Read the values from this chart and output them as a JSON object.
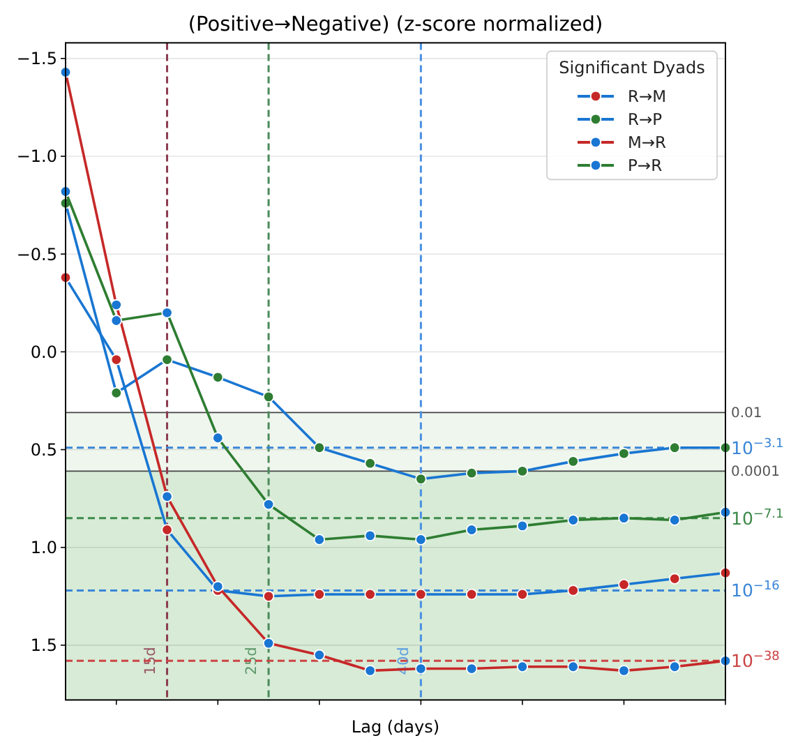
{
  "chart_data": {
    "type": "line",
    "title": "(Positive→Negative) (z-score normalized)",
    "xlabel": "Lag (days)",
    "legend_title": "Significant Dyads",
    "x": [
      5,
      10,
      15,
      20,
      25,
      30,
      35,
      40,
      45,
      50,
      55,
      60,
      65,
      70
    ],
    "xlim": [
      5,
      70
    ],
    "xticks": [
      {
        "value": 10,
        "label": null
      },
      {
        "value": 20,
        "label": null
      },
      {
        "value": 30,
        "label": null
      },
      {
        "value": 40,
        "label": null
      },
      {
        "value": 50,
        "label": null
      },
      {
        "value": 60,
        "label": null
      },
      {
        "value": 70,
        "label": null
      }
    ],
    "ylim": [
      1.78,
      -1.58
    ],
    "yticks": [
      {
        "value": -1.5,
        "label": "−1.5"
      },
      {
        "value": -1,
        "label": "−1.0"
      },
      {
        "value": -0.5,
        "label": "−0.5"
      },
      {
        "value": 0,
        "label": "0.0"
      },
      0.5,
      {
        "value": 1,
        "label": "1.0"
      },
      1.5
    ],
    "tick_labels": "y",
    "grid": "y",
    "legend": "top right",
    "marker": "circle",
    "line_style": "solid",
    "series": [
      {
        "name": "R→M",
        "color": "#1976d2",
        "colors": [
          "#c62828",
          "#c62828",
          "#c62828",
          "#c62828",
          "#c62828",
          "#c62828",
          "#c62828",
          "#c62828",
          "#c62828",
          "#c62828",
          "#c62828",
          "#c62828",
          "#c62828",
          "#c62828"
        ],
        "values": [
          -0.38,
          0.04,
          0.91,
          1.22,
          1.25,
          1.24,
          1.24,
          1.24,
          1.24,
          1.24,
          1.22,
          1.19,
          1.16,
          1.13
        ]
      },
      {
        "name": "R→P",
        "color": "#1976d2",
        "colors": [
          "#2e7d32",
          "#2e7d32",
          "#2e7d32",
          "#2e7d32",
          "#2e7d32",
          "#2e7d32",
          "#2e7d32",
          "#2e7d32",
          "#2e7d32",
          "#2e7d32",
          "#2e7d32",
          "#2e7d32",
          "#2e7d32",
          "#2e7d32"
        ],
        "values": [
          -0.76,
          0.21,
          0.04,
          0.13,
          0.23,
          0.49,
          0.57,
          0.65,
          0.62,
          0.61,
          0.56,
          0.52,
          0.49,
          0.49
        ]
      },
      {
        "name": "M→R",
        "color": "#c62828",
        "colors": [
          "#1976d2",
          "#1976d2",
          "#1976d2",
          "#1976d2",
          "#1976d2",
          "#1976d2",
          "#1976d2",
          "#1976d2",
          "#1976d2",
          "#1976d2",
          "#1976d2",
          "#1976d2",
          "#1976d2",
          "#1976d2"
        ],
        "values": [
          -1.43,
          -0.24,
          0.74,
          1.2,
          1.49,
          1.55,
          1.63,
          1.62,
          1.62,
          1.61,
          1.61,
          1.63,
          1.61,
          1.58
        ]
      },
      {
        "name": "P→R",
        "color": "#2e7d32",
        "colors": [
          "#1976d2",
          "#1976d2",
          "#1976d2",
          "#1976d2",
          "#1976d2",
          "#1976d2",
          "#1976d2",
          "#1976d2",
          "#1976d2",
          "#1976d2",
          "#1976d2",
          "#1976d2",
          "#1976d2",
          "#1976d2"
        ],
        "values": [
          -0.82,
          -0.16,
          -0.2,
          0.44,
          0.78,
          0.96,
          0.94,
          0.96,
          0.91,
          0.89,
          0.86,
          0.85,
          0.86,
          0.82
        ]
      }
    ],
    "bands": [
      {
        "axis": "y",
        "from": 0.31,
        "to": 0.61,
        "label": "0.01",
        "color": "#eff6ee"
      },
      {
        "axis": "y",
        "from": 0.61,
        "to": 1.78,
        "label": "0.0001",
        "color": "#d7ebd6"
      }
    ],
    "ref_lines": [
      {
        "axis": "y",
        "value": 0.31,
        "color": "#444444",
        "line_style": "solid"
      },
      {
        "axis": "y",
        "value": 0.61,
        "color": "#444444",
        "line_style": "solid"
      },
      {
        "axis": "x",
        "value": 15,
        "label": "15d",
        "color": "#8c3b50",
        "line_style": "dashed"
      },
      {
        "axis": "x",
        "value": 25,
        "label": "25d",
        "color": "#4a8a5a",
        "line_style": "dashed"
      },
      {
        "axis": "x",
        "value": 40,
        "label": "40d",
        "color": "#4a90e2",
        "line_style": "dashed"
      },
      {
        "axis": "y",
        "value": 0.49,
        "label": "10$^{−3.1}$",
        "color": "#3a86d8",
        "line_style": "dashed"
      },
      {
        "axis": "y",
        "value": 0.85,
        "label": "10$^{−7.1}$",
        "color": "#3d8a4a",
        "line_style": "dashed"
      },
      {
        "axis": "y",
        "value": 1.22,
        "label": "10$^{−16}$",
        "color": "#3a86d8",
        "line_style": "dashed"
      },
      {
        "axis": "y",
        "value": 1.58,
        "label": "10$^{−38}$",
        "color": "#cc4444",
        "line_style": "dashed"
      }
    ]
  }
}
